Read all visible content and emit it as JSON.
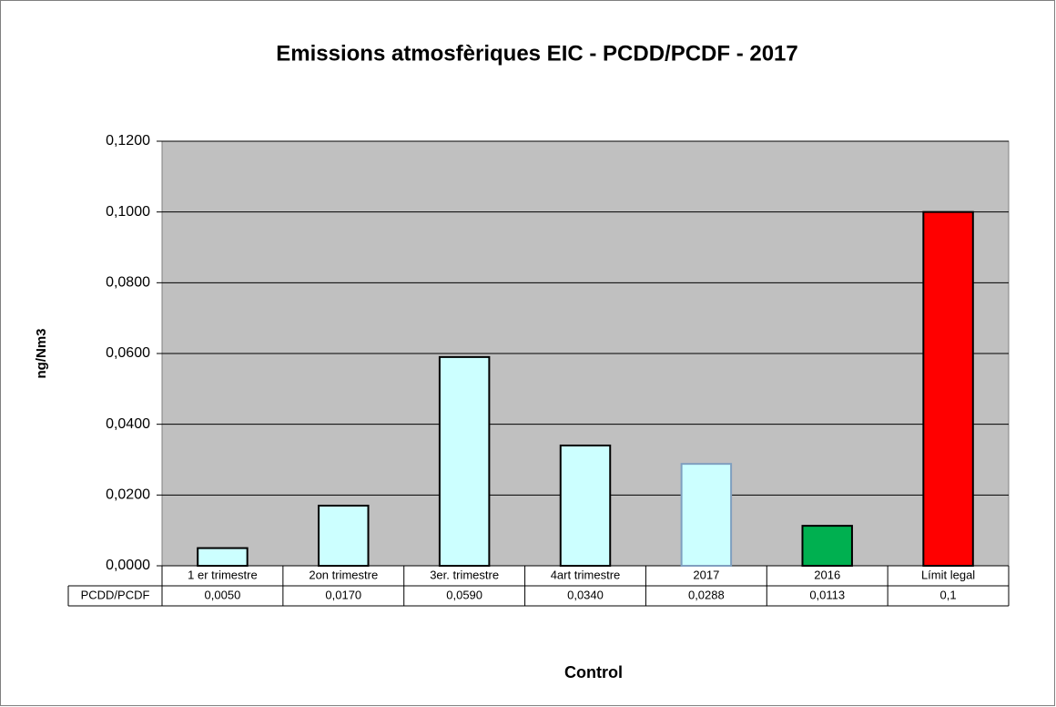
{
  "chart_data": {
    "type": "bar",
    "title": "Emissions atmosfèriques EIC - PCDD/PCDF - 2017",
    "y_label": "ng/Nm3",
    "x_label": "Control",
    "categories": [
      "1 er trimestre",
      "2on trimestre",
      "3er. trimestre",
      "4art trimestre",
      "2017",
      "2016",
      "Límit legal"
    ],
    "series": [
      {
        "name": "PCDD/PCDF",
        "values": [
          0.005,
          0.017,
          0.059,
          0.034,
          0.0288,
          0.0113,
          0.1
        ],
        "value_labels": [
          "0,0050",
          "0,0170",
          "0,0590",
          "0,0340",
          "0,0288",
          "0,0113",
          "0,1"
        ],
        "colors": [
          "#ccffff",
          "#ccffff",
          "#ccffff",
          "#ccffff",
          "#ccffff",
          "#00b050",
          "#ff0000"
        ],
        "edge_colors": [
          "#000000",
          "#000000",
          "#000000",
          "#000000",
          "#7f9fbf",
          "#000000",
          "#000000"
        ]
      }
    ],
    "ylim": [
      0,
      0.12
    ],
    "yticks": [
      {
        "value": 0,
        "label": "0,0000"
      },
      {
        "value": 0.02,
        "label": "0,0200"
      },
      {
        "value": 0.04,
        "label": "0,0400"
      },
      {
        "value": 0.06,
        "label": "0,0600"
      },
      {
        "value": 0.08,
        "label": "0,0800"
      },
      {
        "value": 0.1,
        "label": "0,1000"
      },
      {
        "value": 0.12,
        "label": "0,1200"
      }
    ],
    "grid": true,
    "plot_background": "#c0c0c0"
  }
}
